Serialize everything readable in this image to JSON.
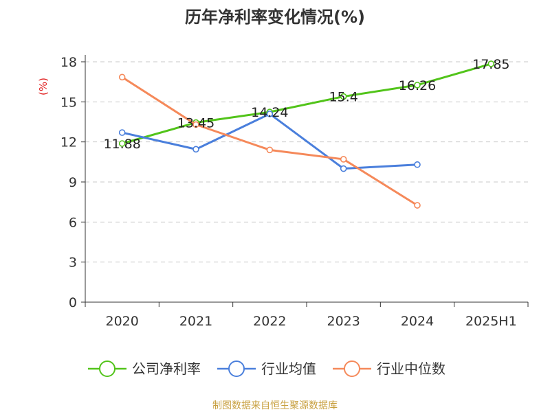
{
  "chart_data": {
    "type": "line",
    "title": "历年净利率变化情况(%)",
    "ylabel": "(%)",
    "xlabel": "",
    "categories": [
      "2020",
      "2021",
      "2022",
      "2023",
      "2024",
      "2025H1"
    ],
    "ylim": [
      0,
      18
    ],
    "yticks": [
      0,
      3,
      6,
      9,
      12,
      15,
      18
    ],
    "grid": true,
    "legend_position": "bottom",
    "series": [
      {
        "name": "公司净利率",
        "color": "#52c41a",
        "values": [
          11.88,
          13.45,
          14.24,
          15.4,
          16.26,
          17.85
        ],
        "labels": [
          "11.88",
          "13.45",
          "14.24",
          "15.4",
          "16.26",
          "17.85"
        ]
      },
      {
        "name": "行业均值",
        "color": "#4a7fdc",
        "values": [
          12.7,
          11.45,
          14.1,
          10.0,
          10.3,
          null
        ]
      },
      {
        "name": "行业中位数",
        "color": "#f5895a",
        "values": [
          16.85,
          13.3,
          11.4,
          10.7,
          7.25,
          null
        ]
      }
    ]
  },
  "footer": {
    "source": "制图数据来自恒生聚源数据库"
  }
}
